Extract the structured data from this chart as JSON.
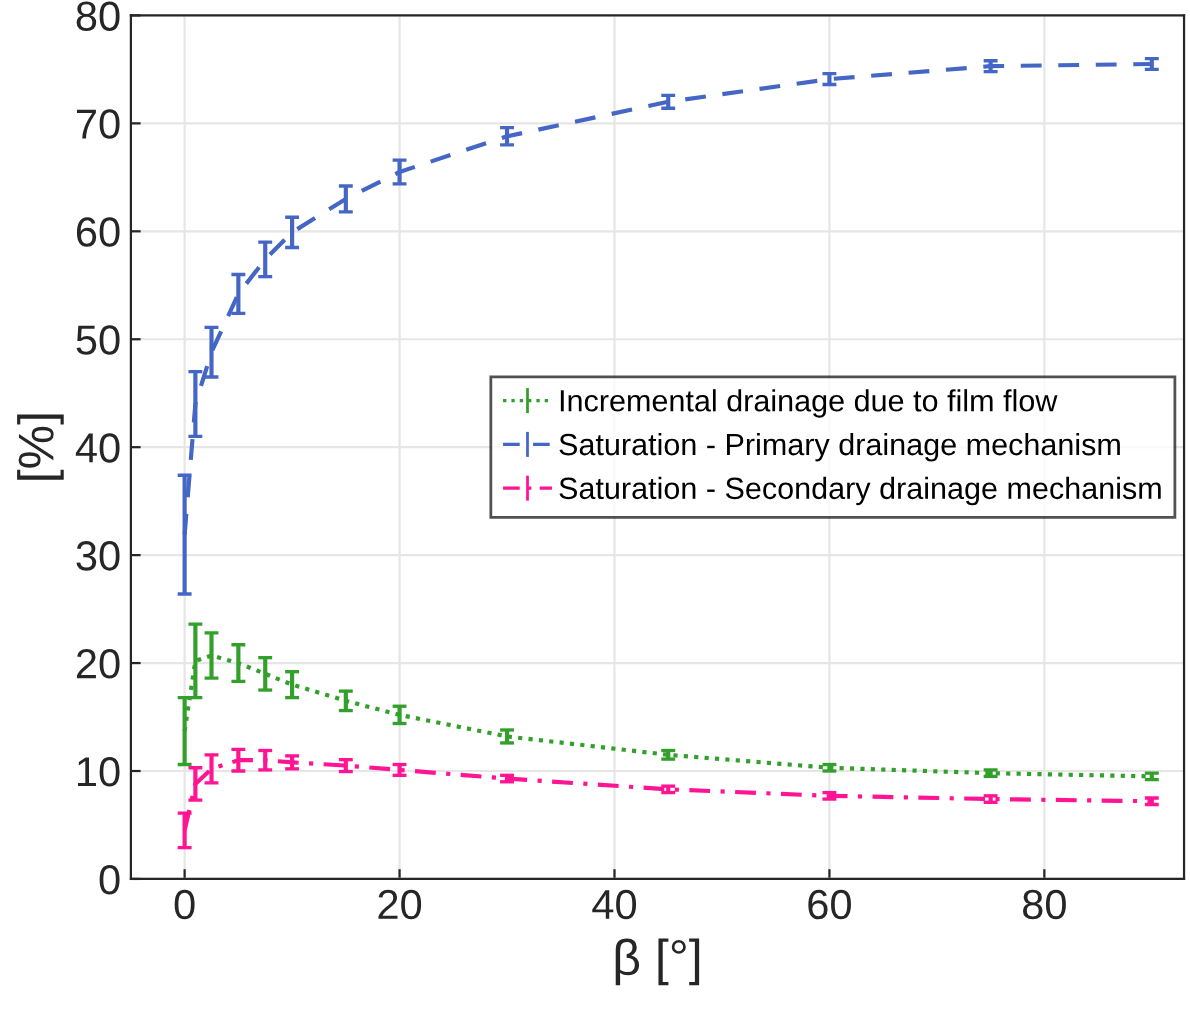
{
  "chart_data": {
    "type": "line",
    "xlabel": "β [°]",
    "ylabel": "[%]",
    "x": [
      0,
      1,
      2.5,
      5,
      7.5,
      10,
      15,
      20,
      30,
      45,
      60,
      75,
      90
    ],
    "series": [
      {
        "name": "Incremental drainage due to film flow",
        "color": "#33a02c",
        "line_style": "dotted",
        "values": [
          13.7,
          20.2,
          20.7,
          20.0,
          19.0,
          18.0,
          16.5,
          15.2,
          13.2,
          11.5,
          10.3,
          9.8,
          9.5
        ],
        "errors": [
          3.1,
          3.4,
          2.1,
          1.7,
          1.5,
          1.2,
          0.9,
          0.8,
          0.6,
          0.4,
          0.3,
          0.3,
          0.3
        ]
      },
      {
        "name": "Saturation - Primary drainage mechanism",
        "color": "#4466c4",
        "line_style": "dashed",
        "values": [
          31.9,
          44.0,
          48.8,
          54.2,
          57.4,
          59.9,
          63.0,
          65.5,
          68.8,
          72.0,
          74.1,
          75.3,
          75.5
        ],
        "errors": [
          5.5,
          3.0,
          2.3,
          1.8,
          1.6,
          1.4,
          1.2,
          1.1,
          0.8,
          0.6,
          0.5,
          0.5,
          0.5
        ]
      },
      {
        "name": "Saturation - Secondary drainage mechanism",
        "color": "#ff1493",
        "line_style": "dashdot",
        "values": [
          4.5,
          8.8,
          10.2,
          11.0,
          11.0,
          10.8,
          10.5,
          10.1,
          9.3,
          8.3,
          7.7,
          7.4,
          7.2
        ],
        "errors": [
          1.6,
          1.5,
          1.3,
          1.0,
          0.9,
          0.6,
          0.55,
          0.5,
          0.3,
          0.3,
          0.3,
          0.3,
          0.3
        ]
      }
    ],
    "xlim": [
      -5,
      93
    ],
    "ylim": [
      0,
      80
    ],
    "xticks": [
      0,
      20,
      40,
      60,
      80
    ],
    "yticks": [
      0,
      10,
      20,
      30,
      40,
      50,
      60,
      70,
      80
    ],
    "grid": true,
    "legend": "right",
    "marker": "none"
  }
}
